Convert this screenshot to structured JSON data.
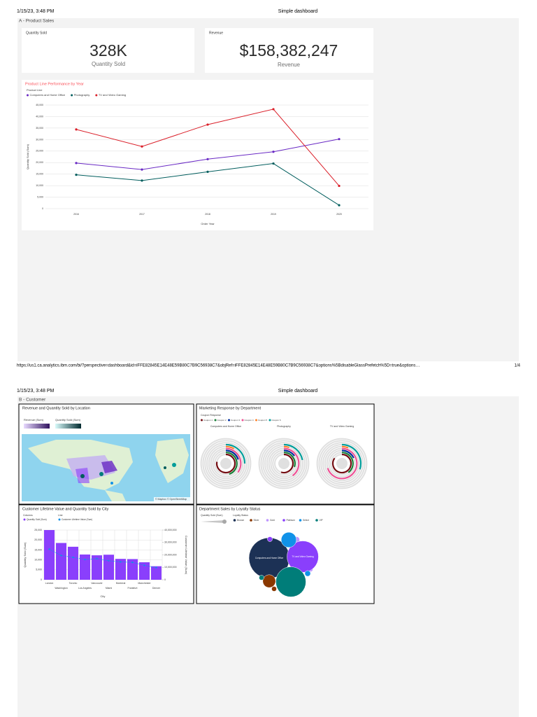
{
  "pages": [
    {
      "date": "1/15/23, 3:48 PM",
      "title": "Simple dashboard",
      "section": "A - Product Sales",
      "url": "https://us1.ca.analytics.ibm.com/bi/?perspective=dashboard&id=iFFE82845E14E48E59B80C7B9C56938C7&objRef=iFFE82845E14E48E59B80C7B9C56938C7&options%5BdisableGlassPrefetch%5D=true&options…",
      "page": "1/4"
    },
    {
      "date": "1/15/23, 3:48 PM",
      "title": "Simple dashboard",
      "section": "B - Customer"
    }
  ],
  "kpis": [
    {
      "title": "Quantity Sold",
      "value": "328K",
      "caption": "Quantity Sold"
    },
    {
      "title": "Revenue",
      "value": "$158,382,247",
      "caption": "Revenue"
    }
  ],
  "map": {
    "title": "Revenue and Quantity Sold by Location",
    "legends": [
      "Revenue (Sum)",
      "Quantity Sold (Sum)"
    ],
    "attribution": "© Mapbox © OpenStreetMap"
  },
  "chart_data": [
    {
      "type": "line",
      "title": "Product Line Performance by Year",
      "legend_title": "Product Line",
      "x_label": "Order Year",
      "y_label": "Quantity Sold (Sum)",
      "categories": [
        "2016",
        "2017",
        "2018",
        "2019",
        "2020"
      ],
      "series": [
        {
          "name": "Computers and Home Office",
          "color": "#6929c4",
          "values": [
            19800,
            17000,
            21500,
            24700,
            30200
          ]
        },
        {
          "name": "Photography",
          "color": "#005d5d",
          "values": [
            14700,
            12200,
            16000,
            19600,
            1500
          ]
        },
        {
          "name": "TV and Video Gaming",
          "color": "#da1e28",
          "values": [
            34400,
            27000,
            36500,
            43200,
            9900
          ]
        }
      ],
      "ylim": [
        0,
        45000
      ],
      "yticks": [
        0,
        {
          "value": 5000,
          "label": "5,000"
        },
        {
          "value": 10000,
          "label": "10,000"
        },
        {
          "value": 15000,
          "label": "15,000"
        },
        {
          "value": 20000,
          "label": "20,000"
        },
        {
          "value": 25000,
          "label": "25,000"
        },
        {
          "value": 30000,
          "label": "30,000"
        },
        {
          "value": 35000,
          "label": "35,000"
        },
        {
          "value": 40000,
          "label": "40,000"
        },
        {
          "value": 45000,
          "label": "45,000"
        }
      ],
      "grid": true
    },
    {
      "type": "radial",
      "title": "Marketing Response by Department",
      "legend_title": "Coupon Response",
      "categories": [
        "Computers and Home Office",
        "Photography",
        "TV and Video Gaming"
      ],
      "series": [
        {
          "name": "Coupon 1",
          "color": "#750e13",
          "values": [
            78,
            55,
            85
          ]
        },
        {
          "name": "Coupon 2",
          "color": "#198038",
          "values": [
            45,
            30,
            40
          ]
        },
        {
          "name": "Coupon 3",
          "color": "#002d9c",
          "values": [
            20,
            15,
            18
          ]
        },
        {
          "name": "Coupon 4",
          "color": "#ee5396",
          "values": [
            35,
            40,
            70
          ]
        },
        {
          "name": "Coupon 5",
          "color": "#ff832b",
          "values": [
            8,
            5,
            6
          ]
        },
        {
          "name": "Coupon 6",
          "color": "#009d9a",
          "values": [
            25,
            22,
            30
          ]
        }
      ],
      "ylim": [
        0,
        100
      ]
    },
    {
      "type": "bar_line",
      "title": "Customer Lifetime Value and Quantity Sold by City",
      "legend_titles": [
        "Columns",
        "Line"
      ],
      "x_label": "City",
      "y_label": "Quantity Sold (Sum)",
      "y2_label": "Customer Lifetime Value (Sum)",
      "categories": [
        "London",
        "Washington",
        "Toronto",
        "Los Angeles",
        "Vancouver",
        "Miami",
        "Montreal",
        "Frankfurt",
        "Manchester",
        "Denver"
      ],
      "series": [
        {
          "name": "Quantity Sold (Sum)",
          "color": "#8a3ffc",
          "type": "bar",
          "values": [
            25000,
            18500,
            16600,
            12700,
            12300,
            12600,
            10500,
            10400,
            8800,
            6800
          ]
        },
        {
          "name": "Customer Lifetime Value (Sum)",
          "color": "#1192e8",
          "type": "line",
          "axis": "y2",
          "values": [
            24600000,
            19500000,
            18000000,
            16300000,
            17000000,
            15300000,
            14400000,
            14000000,
            11600000,
            9800000
          ]
        }
      ],
      "ylim": [
        0,
        25000
      ],
      "yticks": [
        0,
        {
          "value": 5000,
          "label": "5,000"
        },
        {
          "value": 10000,
          "label": "10,000"
        },
        {
          "value": 15000,
          "label": "15,000"
        },
        {
          "value": 20000,
          "label": "20,000"
        },
        {
          "value": 25000,
          "label": "25,000"
        }
      ],
      "y2lim": [
        0,
        40000000
      ],
      "y2ticks": [
        0,
        {
          "value": 10000000,
          "label": "10,000,000"
        },
        {
          "value": 20000000,
          "label": "20,000,000"
        },
        {
          "value": 30000000,
          "label": "30,000,000"
        },
        {
          "value": 40000000,
          "label": "40,000,000"
        }
      ],
      "grid": true
    },
    {
      "type": "bubble",
      "title": "Department Sales by Loyalty Status",
      "size_legend_title": "Quantity Sold (Sum)",
      "legend_title": "Loyalty Status",
      "series": [
        {
          "name": "Bronze",
          "color": "#1c3155",
          "labels": [
            "Computers and Home Office"
          ],
          "values": [
            100000
          ]
        },
        {
          "name": "Silver",
          "color": "#8a3800",
          "labels": [
            null,
            null
          ],
          "values": [
            10000,
            1500
          ]
        },
        {
          "name": "Gold",
          "color": "#be95ff",
          "labels": [
            null,
            null
          ],
          "values": [
            2500,
            1500
          ]
        },
        {
          "name": "Platinum",
          "color": "#8a3ffc",
          "labels": [
            "TV and Video Gaming",
            null
          ],
          "values": [
            60000,
            1500
          ]
        },
        {
          "name": "Select",
          "color": "#1192e8",
          "labels": [
            null,
            null
          ],
          "values": [
            14000,
            2000
          ]
        },
        {
          "name": "VIP",
          "color": "#007d79",
          "labels": [
            null,
            null
          ],
          "values": [
            55000,
            1500
          ]
        }
      ]
    }
  ]
}
